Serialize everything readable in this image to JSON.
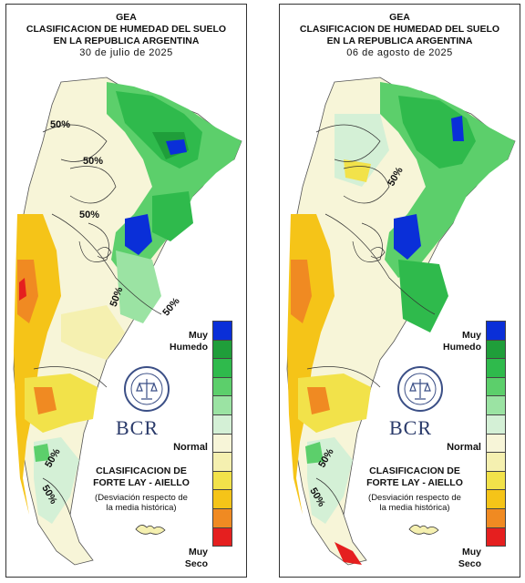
{
  "panels": [
    {
      "org": "GEA",
      "title_line1": "CLASIFICACION DE HUMEDAD DEL SUELO",
      "title_line2": "EN LA REPUBLICA ARGENTINA",
      "date": "30 de julio de 2025",
      "pct_labels": [
        "50%",
        "50%",
        "50%",
        "50%",
        "50%",
        "50%",
        "50%"
      ]
    },
    {
      "org": "GEA",
      "title_line1": "CLASIFICACION DE HUMEDAD DEL SUELO",
      "title_line2": "EN LA REPUBLICA ARGENTINA",
      "date": "06 de agosto de 2025",
      "pct_labels": [
        "50%",
        "50%",
        "50%"
      ]
    }
  ],
  "legend": {
    "top_label_1": "Muy",
    "top_label_2": "Humedo",
    "mid_label": "Normal",
    "bottom_label_1": "Muy",
    "bottom_label_2": "Seco",
    "classes": [
      "#0a2fd8",
      "#1f9e3a",
      "#2fba4c",
      "#5ccf6b",
      "#9be3a3",
      "#d4f0d6",
      "#f7f5d8",
      "#f5f0b0",
      "#f2e24a",
      "#f5c418",
      "#f08a22",
      "#e51f1f"
    ]
  },
  "credits": {
    "method_1": "CLASIFICACION DE",
    "method_2": "FORTE LAY - AIELLO",
    "note_1": "(Desviación respecto de",
    "note_2": "la media histórica)",
    "brand": "BCR"
  }
}
